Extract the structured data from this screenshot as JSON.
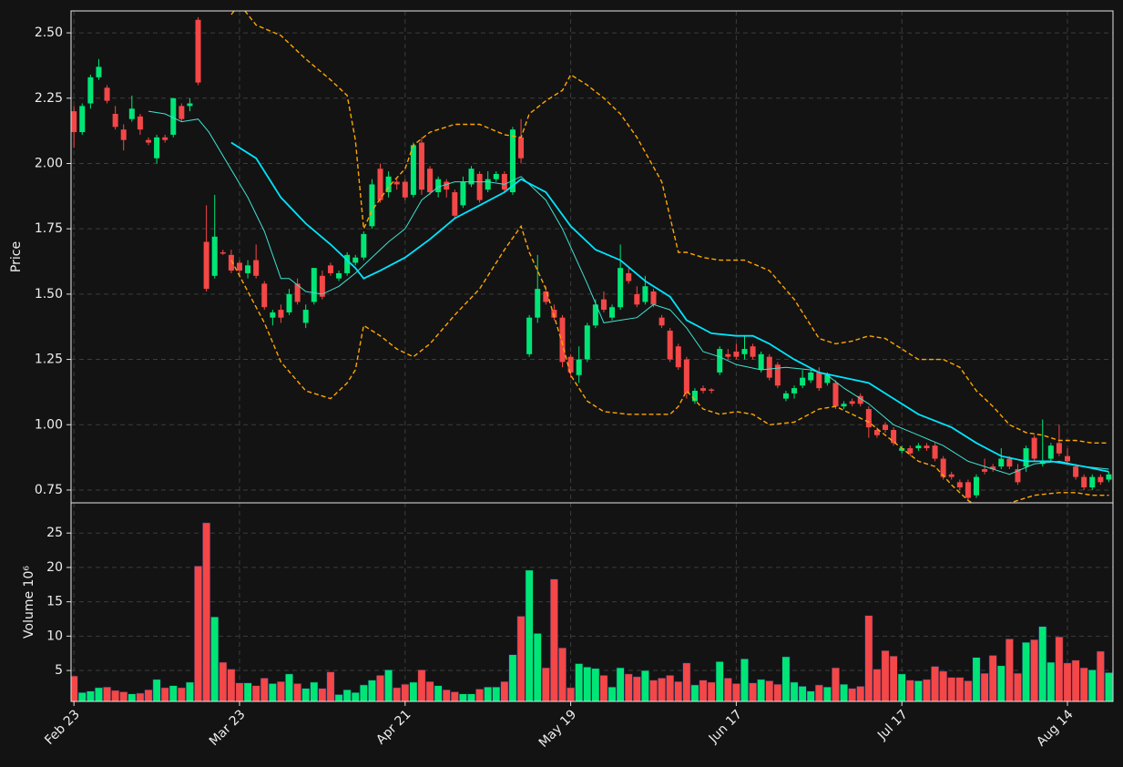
{
  "chart_data": [
    {
      "type": "candlestick",
      "ylabel": "Price",
      "up_color": "#00e676",
      "down_color": "#f44747",
      "grid": true,
      "xlim": [
        -0.35,
        125.5
      ],
      "ylim": [
        0.701,
        2.584
      ],
      "yticks": [
        {
          "value": 0.75,
          "label": "0.75"
        },
        {
          "value": 1,
          "label": "1.00"
        },
        {
          "value": 1.25,
          "label": "1.25"
        },
        {
          "value": 1.5,
          "label": "1.50"
        },
        {
          "value": 1.75,
          "label": "1.75"
        },
        {
          "value": 2,
          "label": "2.00"
        },
        {
          "value": 2.25,
          "label": "2.25"
        },
        {
          "value": 2.5,
          "label": "2.50"
        }
      ],
      "open": [
        2.2,
        2.12,
        2.23,
        2.33,
        2.29,
        2.19,
        2.13,
        2.17,
        2.18,
        2.09,
        2.02,
        2.1,
        2.11,
        2.22,
        2.22,
        2.55,
        1.7,
        1.57,
        1.66,
        1.65,
        1.62,
        1.58,
        1.63,
        1.54,
        1.41,
        1.44,
        1.43,
        1.54,
        1.39,
        1.47,
        1.57,
        1.61,
        1.56,
        1.58,
        1.62,
        1.64,
        1.76,
        1.98,
        1.89,
        1.93,
        1.93,
        1.88,
        2.08,
        1.98,
        1.89,
        1.93,
        1.89,
        1.84,
        1.92,
        1.96,
        1.9,
        1.94,
        1.96,
        1.89,
        2.1,
        1.27,
        1.41,
        1.51,
        1.44,
        1.41,
        1.26,
        1.19,
        1.25,
        1.38,
        1.48,
        1.41,
        1.45,
        1.58,
        1.5,
        1.47,
        1.51,
        1.41,
        1.36,
        1.3,
        1.25,
        1.09,
        1.14,
        1.135,
        1.2,
        1.27,
        1.28,
        1.27,
        1.3,
        1.21,
        1.26,
        1.23,
        1.1,
        1.12,
        1.15,
        1.17,
        1.2,
        1.16,
        1.16,
        1.07,
        1.09,
        1.11,
        1.06,
        0.98,
        1.0,
        0.98,
        0.9,
        0.91,
        0.91,
        0.92,
        0.92,
        0.87,
        0.81,
        0.78,
        0.78,
        0.73,
        0.83,
        0.84,
        0.84,
        0.87,
        0.83,
        0.84,
        0.95,
        0.85,
        0.87,
        0.93,
        0.88,
        0.84,
        0.8,
        0.76,
        0.8,
        0.79
      ],
      "close": [
        2.12,
        2.22,
        2.33,
        2.37,
        2.24,
        2.14,
        2.09,
        2.21,
        2.13,
        2.08,
        2.1,
        2.09,
        2.25,
        2.17,
        2.23,
        2.31,
        1.52,
        1.72,
        1.655,
        1.59,
        1.59,
        1.61,
        1.57,
        1.45,
        1.43,
        1.41,
        1.5,
        1.47,
        1.44,
        1.6,
        1.49,
        1.58,
        1.58,
        1.65,
        1.64,
        1.73,
        1.92,
        1.86,
        1.95,
        1.92,
        1.87,
        2.07,
        1.9,
        1.89,
        1.94,
        1.9,
        1.8,
        1.93,
        1.98,
        1.86,
        1.94,
        1.96,
        1.9,
        2.13,
        2.02,
        1.41,
        1.52,
        1.47,
        1.41,
        1.24,
        1.2,
        1.25,
        1.38,
        1.46,
        1.44,
        1.45,
        1.6,
        1.55,
        1.46,
        1.53,
        1.46,
        1.38,
        1.25,
        1.22,
        1.12,
        1.13,
        1.13,
        1.13,
        1.29,
        1.26,
        1.26,
        1.29,
        1.26,
        1.27,
        1.18,
        1.15,
        1.12,
        1.14,
        1.18,
        1.2,
        1.14,
        1.19,
        1.07,
        1.08,
        1.08,
        1.08,
        0.99,
        0.96,
        0.98,
        0.93,
        0.91,
        0.89,
        0.92,
        0.91,
        0.87,
        0.8,
        0.8,
        0.76,
        0.72,
        0.8,
        0.82,
        0.83,
        0.87,
        0.84,
        0.78,
        0.91,
        0.87,
        0.86,
        0.92,
        0.89,
        0.86,
        0.8,
        0.76,
        0.8,
        0.78,
        0.81
      ],
      "high": [
        2.22,
        2.23,
        2.34,
        2.4,
        2.3,
        2.22,
        2.15,
        2.26,
        2.19,
        2.1,
        2.11,
        2.11,
        2.25,
        2.23,
        2.25,
        2.56,
        1.84,
        1.88,
        1.67,
        1.67,
        1.63,
        1.63,
        1.69,
        1.55,
        1.44,
        1.46,
        1.52,
        1.56,
        1.46,
        1.6,
        1.59,
        1.62,
        1.59,
        1.66,
        1.65,
        1.74,
        1.94,
        2.0,
        1.97,
        1.94,
        1.94,
        2.08,
        2.1,
        1.99,
        1.95,
        1.94,
        1.9,
        1.95,
        1.99,
        1.97,
        1.97,
        1.97,
        1.97,
        2.14,
        2.17,
        1.42,
        1.65,
        1.53,
        1.46,
        1.42,
        1.27,
        1.3,
        1.39,
        1.48,
        1.51,
        1.46,
        1.69,
        1.6,
        1.53,
        1.57,
        1.52,
        1.42,
        1.37,
        1.31,
        1.26,
        1.14,
        1.15,
        1.14,
        1.3,
        1.29,
        1.31,
        1.34,
        1.31,
        1.28,
        1.27,
        1.24,
        1.13,
        1.15,
        1.21,
        1.21,
        1.22,
        1.2,
        1.17,
        1.09,
        1.1,
        1.12,
        1.07,
        0.99,
        1.01,
        0.99,
        0.92,
        0.92,
        0.93,
        0.93,
        0.93,
        0.88,
        0.82,
        0.79,
        0.79,
        0.81,
        0.87,
        0.85,
        0.91,
        0.88,
        0.85,
        0.92,
        0.96,
        1.02,
        0.93,
        1.0,
        0.91,
        0.85,
        0.81,
        0.81,
        0.81,
        0.82
      ],
      "low": [
        2.06,
        2.11,
        2.21,
        2.32,
        2.23,
        2.13,
        2.05,
        2.16,
        2.11,
        2.07,
        2.0,
        2.08,
        2.1,
        2.16,
        2.2,
        2.3,
        1.51,
        1.56,
        1.65,
        1.58,
        1.57,
        1.56,
        1.56,
        1.44,
        1.38,
        1.39,
        1.42,
        1.46,
        1.37,
        1.46,
        1.48,
        1.57,
        1.55,
        1.57,
        1.61,
        1.63,
        1.75,
        1.85,
        1.87,
        1.9,
        1.86,
        1.87,
        1.88,
        1.88,
        1.87,
        1.87,
        1.79,
        1.83,
        1.91,
        1.85,
        1.89,
        1.93,
        1.89,
        1.88,
        2.0,
        1.26,
        1.39,
        1.46,
        1.4,
        1.22,
        1.18,
        1.16,
        1.24,
        1.37,
        1.43,
        1.4,
        1.44,
        1.54,
        1.45,
        1.46,
        1.45,
        1.37,
        1.24,
        1.21,
        1.1,
        1.08,
        1.12,
        1.12,
        1.19,
        1.25,
        1.25,
        1.25,
        1.25,
        1.2,
        1.17,
        1.14,
        1.09,
        1.1,
        1.14,
        1.16,
        1.13,
        1.15,
        1.06,
        1.06,
        1.07,
        1.07,
        0.95,
        0.95,
        0.97,
        0.92,
        0.89,
        0.88,
        0.9,
        0.9,
        0.86,
        0.79,
        0.79,
        0.75,
        0.71,
        0.72,
        0.81,
        0.82,
        0.83,
        0.83,
        0.77,
        0.82,
        0.86,
        0.84,
        0.86,
        0.88,
        0.85,
        0.79,
        0.75,
        0.75,
        0.77,
        0.78
      ],
      "lines": [
        {
          "color": "#40e0d0",
          "width": 1,
          "dash": false,
          "x": [
            9,
            11,
            13,
            15,
            16.3,
            21,
            23,
            25,
            26,
            28,
            30,
            32,
            34,
            35,
            38,
            40,
            42,
            44,
            46,
            50,
            52,
            54,
            57,
            59,
            62,
            64,
            66,
            68,
            70,
            72,
            74,
            76,
            78,
            80,
            83,
            86,
            89,
            91,
            93,
            96,
            99,
            102,
            105,
            108,
            110,
            113,
            116,
            119,
            122,
            125
          ],
          "values": [
            2.2,
            2.19,
            2.16,
            2.17,
            2.12,
            1.87,
            1.74,
            1.56,
            1.56,
            1.51,
            1.5,
            1.53,
            1.58,
            1.61,
            1.7,
            1.75,
            1.86,
            1.91,
            1.93,
            1.93,
            1.92,
            1.95,
            1.86,
            1.75,
            1.54,
            1.39,
            1.4,
            1.41,
            1.46,
            1.44,
            1.37,
            1.28,
            1.26,
            1.23,
            1.21,
            1.22,
            1.21,
            1.19,
            1.14,
            1.08,
            1.0,
            0.96,
            0.92,
            0.86,
            0.84,
            0.81,
            0.85,
            0.86,
            0.84,
            0.83
          ]
        },
        {
          "color": "#00e5ff",
          "width": 1.8,
          "dash": false,
          "x": [
            19,
            22,
            25,
            28,
            31,
            34,
            35,
            37,
            40,
            43,
            46,
            49,
            52,
            54,
            57,
            60,
            63,
            66,
            69,
            72,
            74,
            77,
            80,
            82,
            84,
            87,
            90,
            93,
            96,
            99,
            102,
            106,
            109,
            112,
            115,
            118,
            122,
            125
          ],
          "values": [
            2.08,
            2.02,
            1.87,
            1.77,
            1.69,
            1.6,
            1.56,
            1.59,
            1.64,
            1.71,
            1.79,
            1.84,
            1.89,
            1.94,
            1.89,
            1.76,
            1.67,
            1.63,
            1.55,
            1.49,
            1.4,
            1.35,
            1.34,
            1.34,
            1.31,
            1.25,
            1.2,
            1.18,
            1.16,
            1.1,
            1.04,
            0.99,
            0.93,
            0.88,
            0.86,
            0.86,
            0.84,
            0.82
          ]
        },
        {
          "color": "#ffa500",
          "width": 1.4,
          "dash": true,
          "x": [
            19,
            20,
            22,
            25,
            28,
            31,
            33,
            34,
            35,
            36,
            38,
            40,
            41,
            43,
            46,
            49,
            52,
            54,
            55,
            57,
            59,
            60,
            62,
            64,
            66,
            68,
            71,
            73,
            74,
            76,
            78,
            81,
            84,
            87,
            90,
            92,
            94,
            96,
            98,
            100,
            102,
            105,
            107,
            109,
            111,
            113,
            115,
            117,
            119,
            121,
            123,
            125
          ],
          "values": [
            2.57,
            2.61,
            2.53,
            2.49,
            2.4,
            2.32,
            2.26,
            2.09,
            1.75,
            1.82,
            1.91,
            1.98,
            2.07,
            2.12,
            2.15,
            2.15,
            2.11,
            2.1,
            2.19,
            2.24,
            2.28,
            2.34,
            2.3,
            2.25,
            2.19,
            2.1,
            1.93,
            1.66,
            1.66,
            1.64,
            1.63,
            1.63,
            1.59,
            1.48,
            1.33,
            1.31,
            1.32,
            1.34,
            1.33,
            1.29,
            1.25,
            1.25,
            1.22,
            1.13,
            1.07,
            1.0,
            0.97,
            0.96,
            0.94,
            0.94,
            0.93,
            0.93
          ]
        },
        {
          "color": "#ffa500",
          "width": 1.4,
          "dash": true,
          "x": [
            19,
            21,
            23,
            25,
            28,
            31,
            33,
            34,
            35,
            37,
            39,
            41,
            43,
            46,
            49,
            52,
            54,
            55,
            57,
            59,
            60,
            62,
            64,
            67,
            70,
            72,
            73,
            74,
            76,
            78,
            80,
            82,
            84,
            87,
            90,
            92,
            94,
            96,
            98,
            100,
            102,
            104,
            106,
            108,
            110,
            112,
            114,
            116,
            119,
            121,
            123,
            125
          ],
          "values": [
            1.63,
            1.51,
            1.39,
            1.24,
            1.13,
            1.1,
            1.16,
            1.21,
            1.38,
            1.34,
            1.29,
            1.26,
            1.31,
            1.42,
            1.52,
            1.67,
            1.76,
            1.66,
            1.52,
            1.31,
            1.19,
            1.09,
            1.05,
            1.04,
            1.04,
            1.04,
            1.07,
            1.13,
            1.06,
            1.04,
            1.05,
            1.04,
            1.0,
            1.01,
            1.06,
            1.07,
            1.04,
            1.01,
            0.96,
            0.91,
            0.86,
            0.84,
            0.77,
            0.71,
            0.67,
            0.69,
            0.71,
            0.73,
            0.74,
            0.74,
            0.73,
            0.73
          ]
        }
      ]
    },
    {
      "type": "bar",
      "ylabel": "Volume  10⁶",
      "grid": true,
      "xlim": [
        -0.35,
        125.5
      ],
      "ylim": [
        0.5,
        29.4
      ],
      "yticks": [
        5,
        10,
        15,
        20,
        25
      ],
      "xticks": [
        {
          "value": 0,
          "label": "Feb 23"
        },
        {
          "value": 20,
          "label": "Mar 23"
        },
        {
          "value": 40,
          "label": "Apr 21"
        },
        {
          "value": 60,
          "label": "May 19"
        },
        {
          "value": 80,
          "label": "Jun 17"
        },
        {
          "value": 100,
          "label": "Jul 17"
        },
        {
          "value": 120,
          "label": "Aug 14"
        }
      ],
      "values": [
        4.2,
        1.8,
        2.0,
        2.5,
        2.6,
        2.1,
        1.9,
        1.6,
        1.7,
        2.2,
        3.7,
        2.5,
        2.8,
        2.5,
        3.3,
        20.2,
        26.5,
        12.8,
        6.2,
        5.2,
        3.2,
        3.2,
        2.8,
        3.9,
        3.1,
        3.4,
        4.5,
        3.1,
        2.4,
        3.3,
        2.4,
        4.8,
        1.5,
        2.2,
        1.8,
        2.9,
        3.6,
        4.3,
        5.1,
        2.5,
        3.0,
        3.3,
        5.1,
        3.4,
        2.8,
        2.2,
        1.9,
        1.6,
        1.6,
        2.3,
        2.6,
        2.6,
        3.4,
        7.3,
        12.9,
        19.6,
        10.4,
        5.4,
        18.3,
        8.3,
        2.5,
        6.0,
        5.5,
        5.3,
        4.3,
        2.6,
        5.4,
        4.5,
        4.1,
        5.0,
        3.6,
        3.9,
        4.3,
        3.4,
        6.1,
        2.9,
        3.6,
        3.3,
        6.3,
        3.9,
        3.1,
        6.7,
        3.2,
        3.7,
        3.5,
        3.0,
        7.0,
        3.3,
        2.7,
        2.0,
        2.9,
        2.6,
        5.4,
        3.0,
        2.4,
        2.7,
        13.0,
        5.2,
        7.9,
        7.1,
        4.5,
        3.6,
        3.5,
        3.7,
        5.6,
        4.9,
        4.0,
        4.0,
        3.5,
        6.9,
        4.6,
        7.2,
        5.7,
        9.6,
        4.6,
        9.1,
        9.5,
        11.4,
        6.2,
        9.9,
        6.1,
        6.5,
        5.4,
        5.1,
        7.8,
        4.7
      ]
    }
  ]
}
